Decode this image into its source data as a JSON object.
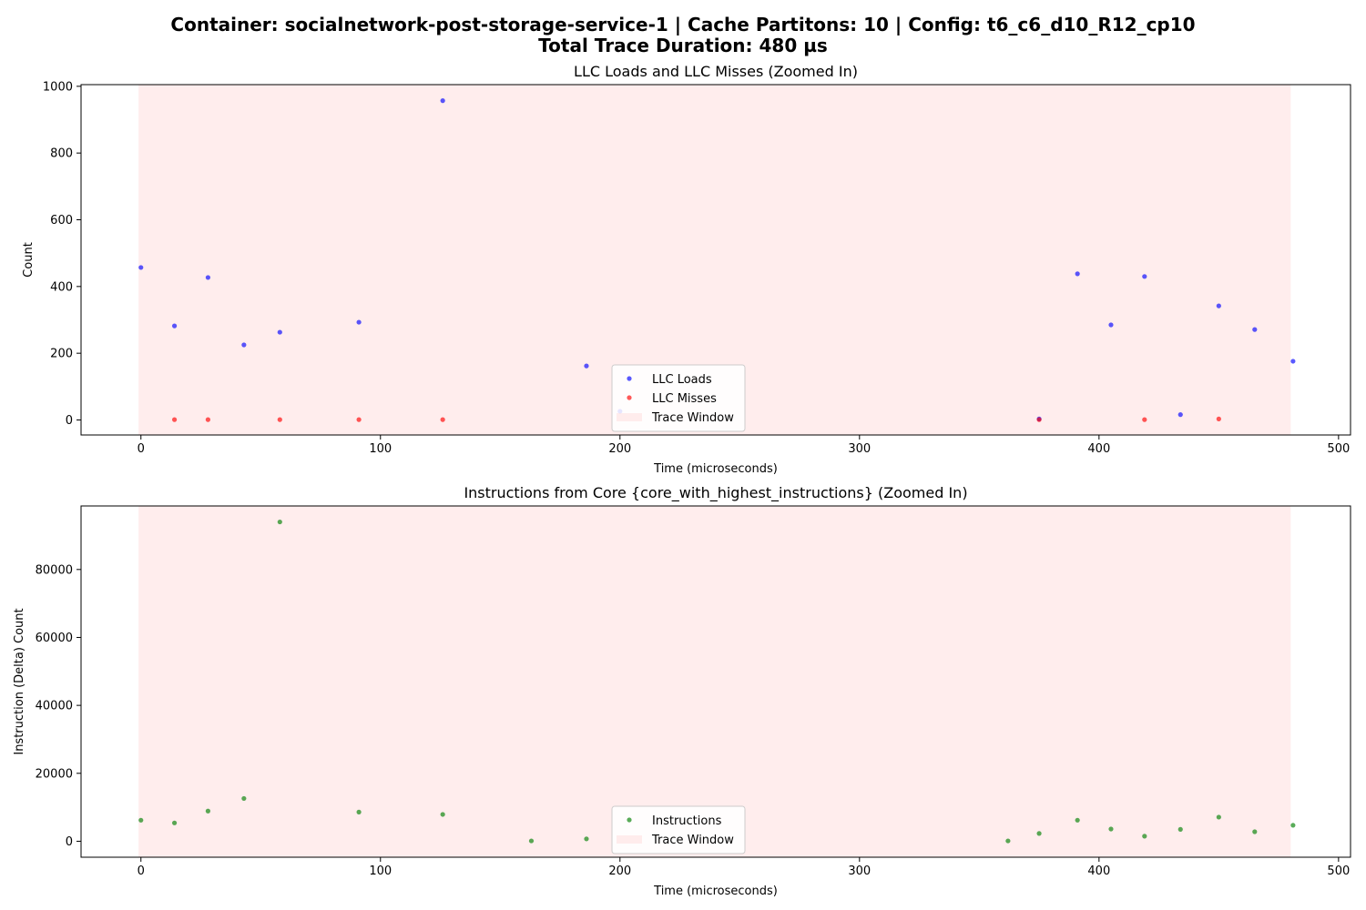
{
  "figure": {
    "suptitle_line1": "Container: socialnetwork-post-storage-service-1 | Cache Partitons: 10 | Config: t6_c6_d10_R12_cp10",
    "suptitle_line2": "Total Trace Duration: 480 µs"
  },
  "chart_data": [
    {
      "type": "scatter",
      "title": "LLC Loads and LLC Misses (Zoomed In)",
      "xlabel": "Time (microseconds)",
      "ylabel": "Count",
      "xlim": [
        -25,
        505
      ],
      "ylim": [
        -45,
        1005
      ],
      "xticks": [
        0,
        100,
        200,
        300,
        400,
        500
      ],
      "yticks": [
        0,
        200,
        400,
        600,
        800,
        1000
      ],
      "trace_window": [
        -1,
        480
      ],
      "legend_position": "lower center",
      "series": [
        {
          "name": "LLC Loads",
          "color": "#0000ff",
          "points": [
            [
              0,
              457
            ],
            [
              14,
              282
            ],
            [
              28,
              427
            ],
            [
              43,
              225
            ],
            [
              58,
              263
            ],
            [
              91,
              293
            ],
            [
              126,
              957
            ],
            [
              186,
              162
            ],
            [
              200,
              26
            ],
            [
              375,
              3
            ],
            [
              391,
              438
            ],
            [
              405,
              285
            ],
            [
              419,
              430
            ],
            [
              434,
              16
            ],
            [
              450,
              342
            ],
            [
              465,
              271
            ],
            [
              481,
              176
            ]
          ]
        },
        {
          "name": "LLC Misses",
          "color": "#ff0000",
          "points": [
            [
              14,
              1
            ],
            [
              28,
              1
            ],
            [
              58,
              1
            ],
            [
              91,
              1
            ],
            [
              126,
              1
            ],
            [
              375,
              1
            ],
            [
              419,
              1
            ],
            [
              450,
              3
            ]
          ]
        }
      ],
      "trace_window_label": "Trace Window",
      "trace_window_color": "#ffcccc"
    },
    {
      "type": "scatter",
      "title": "Instructions from Core {core_with_highest_instructions} (Zoomed In)",
      "xlabel": "Time (microseconds)",
      "ylabel": "Instruction (Delta) Count",
      "xlim": [
        -25,
        505
      ],
      "ylim": [
        -4700,
        98700
      ],
      "xticks": [
        0,
        100,
        200,
        300,
        400,
        500
      ],
      "yticks": [
        0,
        20000,
        40000,
        60000,
        80000
      ],
      "trace_window": [
        -1,
        480
      ],
      "legend_position": "lower center",
      "series": [
        {
          "name": "Instructions",
          "color": "#008000",
          "points": [
            [
              0,
              6200
            ],
            [
              14,
              5400
            ],
            [
              28,
              8900
            ],
            [
              43,
              12600
            ],
            [
              58,
              94000
            ],
            [
              91,
              8600
            ],
            [
              126,
              7900
            ],
            [
              163,
              100
            ],
            [
              186,
              700
            ],
            [
              362,
              100
            ],
            [
              375,
              2300
            ],
            [
              391,
              6200
            ],
            [
              405,
              3600
            ],
            [
              419,
              1500
            ],
            [
              434,
              3500
            ],
            [
              450,
              7100
            ],
            [
              465,
              2800
            ],
            [
              481,
              4700
            ]
          ]
        }
      ],
      "trace_window_label": "Trace Window",
      "trace_window_color": "#ffcccc"
    }
  ]
}
